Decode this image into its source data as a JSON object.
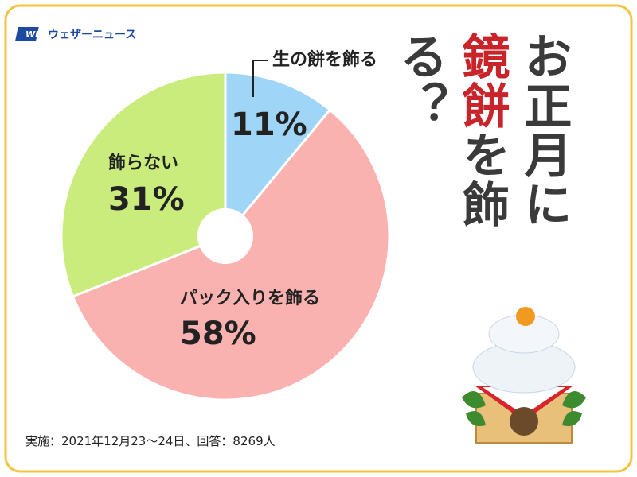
{
  "chart_data": {
    "type": "pie",
    "brand": "ウェザーニュース",
    "title": [
      "お正月に",
      "鏡餅",
      "を飾る？"
    ],
    "categories": [
      "生の餅を飾る",
      "パック入りを飾る",
      "飾らない"
    ],
    "values": [
      11,
      58,
      31
    ],
    "value_labels": [
      "11%",
      "58%",
      "31%"
    ],
    "colors": [
      "#9fd5f7",
      "#f9b2b0",
      "#c9ec7c"
    ],
    "note": "実施：2021年12月23〜24日、回答：8269人"
  }
}
